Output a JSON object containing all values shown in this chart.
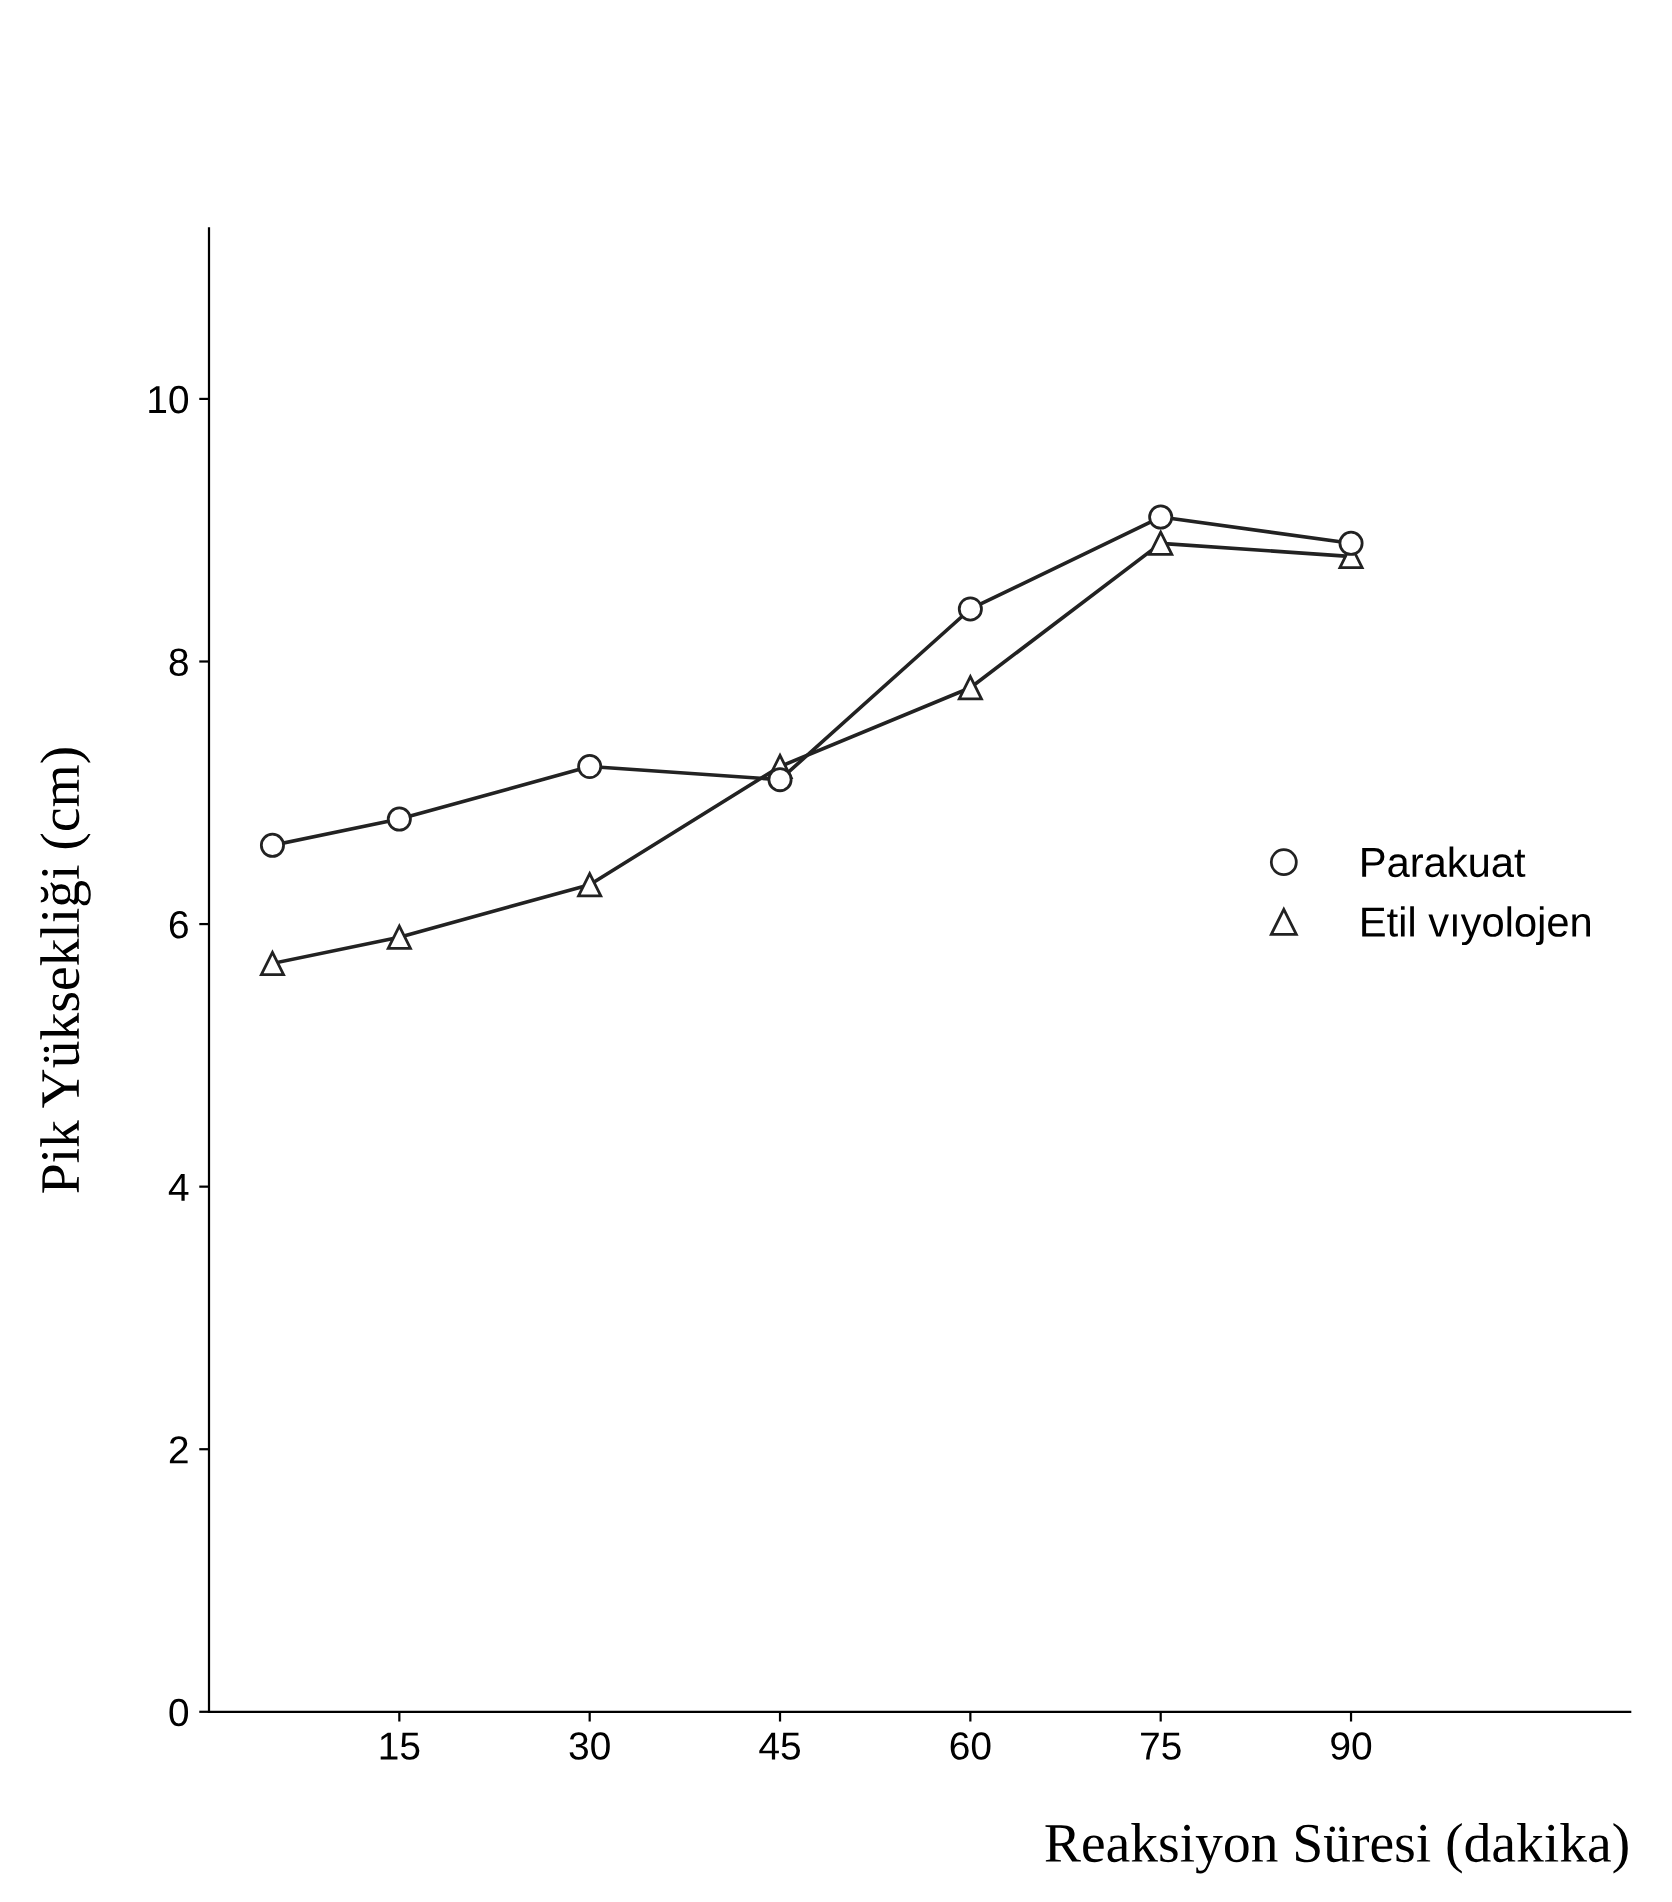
{
  "chart_data": {
    "type": "line",
    "xlabel": "Reaksiyon Süresi (dakika)",
    "ylabel": "Pik Yüksekliği (cm)",
    "x": [
      5,
      15,
      30,
      45,
      60,
      75,
      90
    ],
    "series": [
      {
        "name": "Parakuat",
        "color": "#222222",
        "marker": "circle",
        "values": [
          6.6,
          6.8,
          7.2,
          7.1,
          8.4,
          9.1,
          8.9
        ]
      },
      {
        "name": "Etil vıyolojen",
        "color": "#222222",
        "marker": "triangle",
        "values": [
          5.7,
          5.9,
          6.3,
          7.2,
          7.8,
          8.9,
          8.8
        ]
      }
    ],
    "xlim": [
      0,
      112
    ],
    "xticks": [
      15,
      30,
      45,
      60,
      75,
      90
    ],
    "ylim": [
      0,
      11.3
    ],
    "yticks": [
      0,
      2,
      4,
      6,
      8,
      10
    ],
    "grid": false,
    "legend": "right",
    "line_style": "solid"
  }
}
